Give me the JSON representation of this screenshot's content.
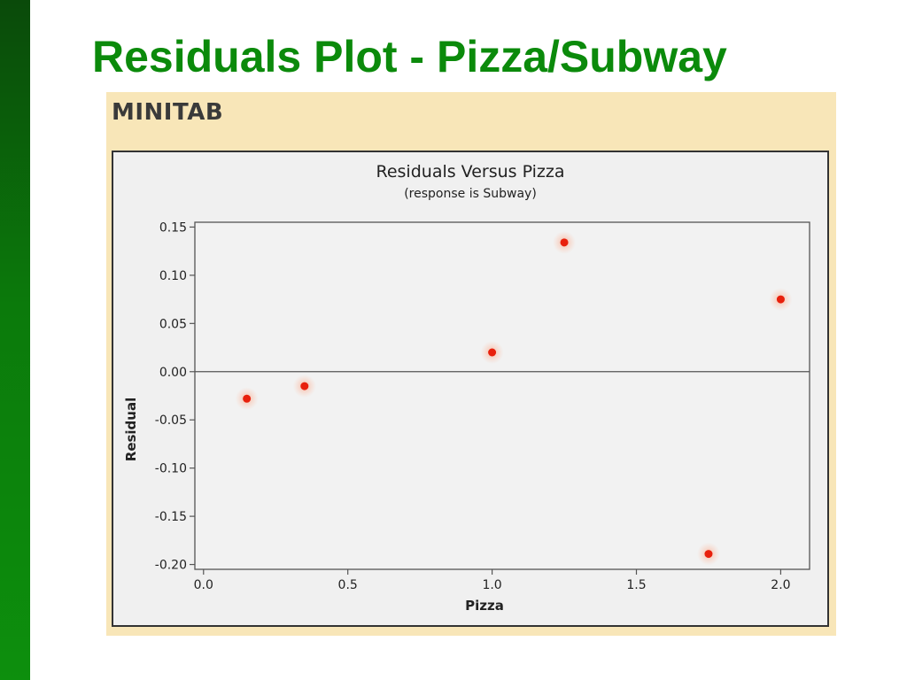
{
  "slide": {
    "title": "Residuals Plot - Pizza/Subway"
  },
  "panel": {
    "brand": "MINITAB"
  },
  "colors": {
    "title_green": "#0b8a0b",
    "panel_bg": "#f8e6b8",
    "point": "#e8200c"
  },
  "chart_data": {
    "type": "scatter",
    "title": "Residuals Versus Pizza",
    "subtitle": "(response is Subway)",
    "xlabel": "Pizza",
    "ylabel": "Residual",
    "xlim": [
      -0.03,
      2.1
    ],
    "ylim": [
      -0.205,
      0.155
    ],
    "x_ticks": [
      0.0,
      0.5,
      1.0,
      1.5,
      2.0
    ],
    "x_tick_labels": [
      "0.0",
      "0.5",
      "1.0",
      "1.5",
      "2.0"
    ],
    "y_ticks": [
      0.15,
      0.1,
      0.05,
      0.0,
      -0.05,
      -0.1,
      -0.15,
      -0.2
    ],
    "y_tick_labels": [
      "0.15",
      "0.10",
      "0.05",
      "0.00",
      "-0.05",
      "-0.10",
      "-0.15",
      "-0.20"
    ],
    "reference_line_y": 0,
    "grid": false,
    "points": [
      {
        "x": 0.15,
        "y": -0.028
      },
      {
        "x": 0.35,
        "y": -0.015
      },
      {
        "x": 1.0,
        "y": 0.02
      },
      {
        "x": 1.25,
        "y": 0.134
      },
      {
        "x": 1.75,
        "y": -0.189
      },
      {
        "x": 2.0,
        "y": 0.075
      }
    ]
  }
}
